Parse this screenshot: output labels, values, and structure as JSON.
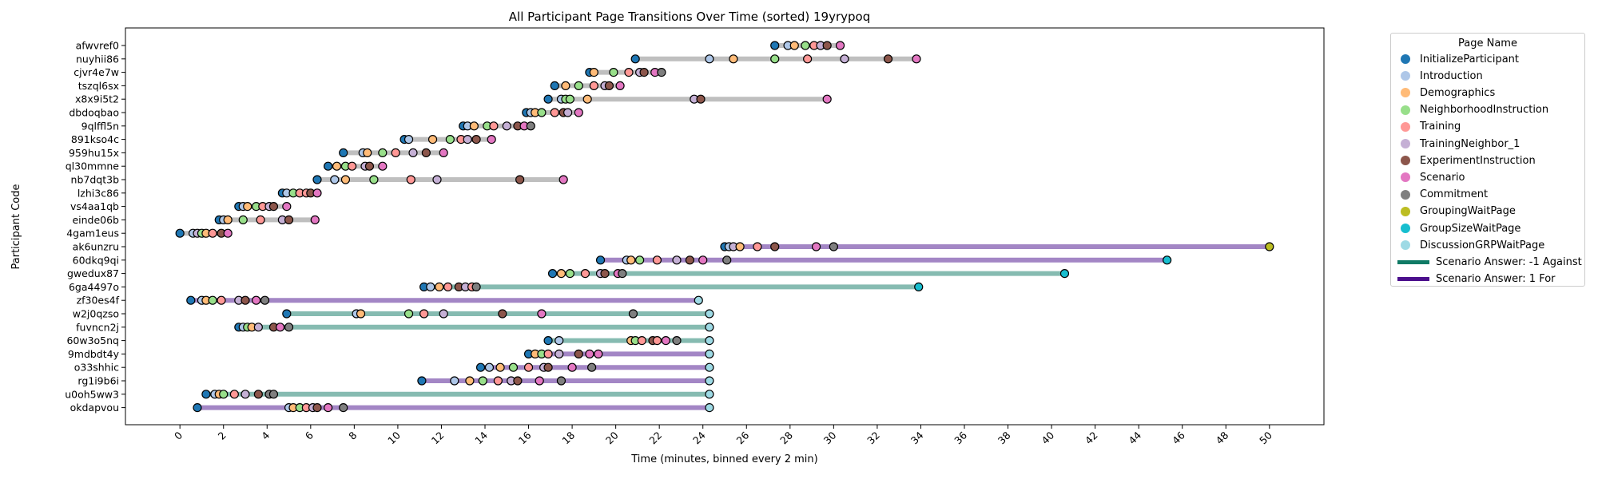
{
  "chart_data": {
    "type": "scatter",
    "title": "All Participant Page Transitions Over Time (sorted) 19yrypoq",
    "xlabel": "Time (minutes, binned every 2 min)",
    "ylabel": "Participant Code",
    "xlim": [
      -2.5,
      52.5
    ],
    "xticks": [
      0,
      2,
      4,
      6,
      8,
      10,
      12,
      14,
      16,
      18,
      20,
      22,
      24,
      26,
      28,
      30,
      32,
      34,
      36,
      38,
      40,
      42,
      44,
      46,
      48,
      50
    ],
    "grid": false,
    "legend_placement": "outside-top-right",
    "legend_title": "Page Name",
    "pages": [
      {
        "name": "InitializeParticipant",
        "color": "#1f77b4"
      },
      {
        "name": "Introduction",
        "color": "#aec7e8"
      },
      {
        "name": "Demographics",
        "color": "#ffbb78"
      },
      {
        "name": "NeighborhoodInstruction",
        "color": "#98df8a"
      },
      {
        "name": "Training",
        "color": "#ff9896"
      },
      {
        "name": "TrainingNeighbor_1",
        "color": "#c5b0d5"
      },
      {
        "name": "ExperimentInstruction",
        "color": "#8c564b"
      },
      {
        "name": "Scenario",
        "color": "#e377c2"
      },
      {
        "name": "Commitment",
        "color": "#7f7f7f"
      },
      {
        "name": "GroupingWaitPage",
        "color": "#bcbd22"
      },
      {
        "name": "GroupSizeWaitPage",
        "color": "#17becf"
      },
      {
        "name": "DiscussionGRPWaitPage",
        "color": "#9edae5"
      }
    ],
    "answers": [
      {
        "name": "Scenario Answer: -1 Against",
        "color": "#0f7a65"
      },
      {
        "name": "Scenario Answer: 1 For",
        "color": "#4b0f8c"
      }
    ],
    "participants": [
      {
        "code": "afwvref0",
        "answer": null,
        "events": [
          [
            27.3,
            0
          ],
          [
            27.9,
            1
          ],
          [
            28.2,
            2
          ],
          [
            28.7,
            3
          ],
          [
            29.1,
            4
          ],
          [
            29.4,
            5
          ],
          [
            29.7,
            6
          ],
          [
            30.3,
            7
          ]
        ]
      },
      {
        "code": "nuyhii86",
        "answer": null,
        "events": [
          [
            20.9,
            0
          ],
          [
            24.3,
            1
          ],
          [
            25.4,
            2
          ],
          [
            27.3,
            3
          ],
          [
            28.8,
            4
          ],
          [
            30.5,
            5
          ],
          [
            32.5,
            6
          ],
          [
            33.8,
            7
          ]
        ]
      },
      {
        "code": "cjvr4e7w",
        "answer": null,
        "events": [
          [
            18.8,
            0
          ],
          [
            19.0,
            2
          ],
          [
            19.9,
            3
          ],
          [
            20.6,
            4
          ],
          [
            21.1,
            5
          ],
          [
            21.3,
            6
          ],
          [
            21.8,
            7
          ],
          [
            22.1,
            8
          ]
        ]
      },
      {
        "code": "tszql6sx",
        "answer": null,
        "events": [
          [
            17.2,
            0
          ],
          [
            17.7,
            2
          ],
          [
            18.3,
            3
          ],
          [
            19.0,
            4
          ],
          [
            19.5,
            5
          ],
          [
            19.7,
            6
          ],
          [
            20.2,
            7
          ]
        ]
      },
      {
        "code": "x8x9i5t2",
        "answer": null,
        "events": [
          [
            16.9,
            0
          ],
          [
            17.5,
            1
          ],
          [
            17.7,
            3
          ],
          [
            17.9,
            3
          ],
          [
            18.7,
            2
          ],
          [
            23.6,
            5
          ],
          [
            23.9,
            6
          ],
          [
            29.7,
            7
          ]
        ]
      },
      {
        "code": "dbdoqbao",
        "answer": null,
        "events": [
          [
            15.9,
            0
          ],
          [
            16.1,
            1
          ],
          [
            16.3,
            2
          ],
          [
            16.6,
            3
          ],
          [
            17.2,
            4
          ],
          [
            17.6,
            6
          ],
          [
            17.8,
            5
          ],
          [
            18.3,
            7
          ]
        ]
      },
      {
        "code": "9qlffl5n",
        "answer": null,
        "events": [
          [
            13.0,
            0
          ],
          [
            13.2,
            1
          ],
          [
            13.5,
            2
          ],
          [
            14.1,
            3
          ],
          [
            14.4,
            4
          ],
          [
            15.0,
            5
          ],
          [
            15.5,
            6
          ],
          [
            15.8,
            7
          ],
          [
            16.1,
            8
          ]
        ]
      },
      {
        "code": "891kso4c",
        "answer": null,
        "events": [
          [
            10.3,
            0
          ],
          [
            10.5,
            1
          ],
          [
            11.6,
            2
          ],
          [
            12.4,
            3
          ],
          [
            12.9,
            4
          ],
          [
            13.2,
            5
          ],
          [
            13.6,
            6
          ],
          [
            14.3,
            7
          ]
        ]
      },
      {
        "code": "959hu15x",
        "answer": null,
        "events": [
          [
            7.5,
            0
          ],
          [
            8.4,
            1
          ],
          [
            8.6,
            2
          ],
          [
            9.3,
            3
          ],
          [
            9.9,
            4
          ],
          [
            10.7,
            5
          ],
          [
            11.3,
            6
          ],
          [
            12.1,
            7
          ]
        ]
      },
      {
        "code": "ql30mmne",
        "answer": null,
        "events": [
          [
            6.8,
            0
          ],
          [
            7.2,
            2
          ],
          [
            7.6,
            3
          ],
          [
            7.9,
            4
          ],
          [
            8.5,
            5
          ],
          [
            8.7,
            6
          ],
          [
            9.3,
            7
          ]
        ]
      },
      {
        "code": "nb7dqt3b",
        "answer": null,
        "events": [
          [
            6.3,
            0
          ],
          [
            7.1,
            1
          ],
          [
            7.6,
            2
          ],
          [
            8.9,
            3
          ],
          [
            10.6,
            4
          ],
          [
            11.8,
            5
          ],
          [
            15.6,
            6
          ],
          [
            17.6,
            7
          ]
        ]
      },
      {
        "code": "lzhi3c86",
        "answer": null,
        "events": [
          [
            4.7,
            0
          ],
          [
            4.9,
            1
          ],
          [
            5.2,
            3
          ],
          [
            5.5,
            4
          ],
          [
            5.8,
            4
          ],
          [
            6.0,
            6
          ],
          [
            6.3,
            7
          ]
        ]
      },
      {
        "code": "vs4aa1qb",
        "answer": null,
        "events": [
          [
            2.7,
            0
          ],
          [
            2.9,
            1
          ],
          [
            3.1,
            2
          ],
          [
            3.5,
            3
          ],
          [
            3.8,
            4
          ],
          [
            4.1,
            5
          ],
          [
            4.3,
            6
          ],
          [
            4.9,
            7
          ]
        ]
      },
      {
        "code": "einde06b",
        "answer": null,
        "events": [
          [
            1.8,
            0
          ],
          [
            2.0,
            1
          ],
          [
            2.2,
            2
          ],
          [
            2.9,
            3
          ],
          [
            3.7,
            4
          ],
          [
            4.7,
            5
          ],
          [
            5.0,
            6
          ],
          [
            6.2,
            7
          ]
        ]
      },
      {
        "code": "4gam1eus",
        "answer": null,
        "events": [
          [
            0.0,
            0
          ],
          [
            0.6,
            1
          ],
          [
            0.8,
            5
          ],
          [
            1.0,
            3
          ],
          [
            1.2,
            2
          ],
          [
            1.5,
            4
          ],
          [
            1.9,
            6
          ],
          [
            2.2,
            7
          ]
        ]
      },
      {
        "code": "ak6unzru",
        "answer": "For",
        "events": [
          [
            25.0,
            0
          ],
          [
            25.2,
            1
          ],
          [
            25.4,
            5
          ],
          [
            25.7,
            2
          ],
          [
            26.5,
            4
          ],
          [
            27.3,
            6
          ],
          [
            29.2,
            7
          ],
          [
            30.0,
            8
          ],
          [
            50.0,
            9
          ]
        ]
      },
      {
        "code": "60dkq9qi",
        "answer": "For",
        "events": [
          [
            19.3,
            0
          ],
          [
            20.5,
            1
          ],
          [
            20.7,
            2
          ],
          [
            21.1,
            3
          ],
          [
            21.9,
            4
          ],
          [
            22.8,
            5
          ],
          [
            23.4,
            6
          ],
          [
            24.0,
            7
          ],
          [
            25.1,
            8
          ],
          [
            45.3,
            10
          ]
        ]
      },
      {
        "code": "gwedux87",
        "answer": "Against",
        "events": [
          [
            17.1,
            0
          ],
          [
            17.5,
            2
          ],
          [
            17.9,
            3
          ],
          [
            18.6,
            4
          ],
          [
            19.3,
            5
          ],
          [
            19.5,
            6
          ],
          [
            20.1,
            7
          ],
          [
            20.3,
            8
          ],
          [
            40.6,
            10
          ]
        ]
      },
      {
        "code": "6ga4497o",
        "answer": "Against",
        "events": [
          [
            11.2,
            0
          ],
          [
            11.5,
            1
          ],
          [
            11.9,
            2
          ],
          [
            12.3,
            4
          ],
          [
            12.8,
            6
          ],
          [
            13.1,
            5
          ],
          [
            13.4,
            4
          ],
          [
            13.6,
            8
          ],
          [
            33.9,
            10
          ]
        ]
      },
      {
        "code": "zf30es4f",
        "answer": "For",
        "events": [
          [
            0.5,
            0
          ],
          [
            1.0,
            1
          ],
          [
            1.2,
            2
          ],
          [
            1.5,
            3
          ],
          [
            1.9,
            4
          ],
          [
            2.7,
            5
          ],
          [
            3.0,
            6
          ],
          [
            3.5,
            7
          ],
          [
            3.9,
            8
          ],
          [
            23.8,
            11
          ]
        ]
      },
      {
        "code": "w2j0qzso",
        "answer": "Against",
        "events": [
          [
            4.9,
            0
          ],
          [
            8.1,
            1
          ],
          [
            8.3,
            2
          ],
          [
            10.5,
            3
          ],
          [
            11.2,
            4
          ],
          [
            12.1,
            5
          ],
          [
            14.8,
            6
          ],
          [
            16.6,
            7
          ],
          [
            20.8,
            8
          ],
          [
            24.3,
            11
          ]
        ]
      },
      {
        "code": "fuvncn2j",
        "answer": "Against",
        "events": [
          [
            2.7,
            0
          ],
          [
            2.9,
            1
          ],
          [
            3.1,
            3
          ],
          [
            3.3,
            2
          ],
          [
            3.6,
            5
          ],
          [
            4.3,
            6
          ],
          [
            4.6,
            7
          ],
          [
            5.0,
            8
          ],
          [
            24.3,
            11
          ]
        ]
      },
      {
        "code": "60w3o5nq",
        "answer": "Against",
        "events": [
          [
            16.9,
            0
          ],
          [
            17.4,
            1
          ],
          [
            20.7,
            2
          ],
          [
            20.9,
            3
          ],
          [
            21.2,
            4
          ],
          [
            21.7,
            6
          ],
          [
            21.9,
            4
          ],
          [
            22.3,
            7
          ],
          [
            22.8,
            8
          ],
          [
            24.3,
            11
          ]
        ]
      },
      {
        "code": "9mdbdt4y",
        "answer": "For",
        "events": [
          [
            16.0,
            0
          ],
          [
            16.3,
            2
          ],
          [
            16.6,
            3
          ],
          [
            16.9,
            4
          ],
          [
            17.4,
            5
          ],
          [
            18.3,
            6
          ],
          [
            18.8,
            7
          ],
          [
            19.2,
            7
          ],
          [
            24.3,
            11
          ]
        ]
      },
      {
        "code": "o33shhic",
        "answer": "For",
        "events": [
          [
            13.8,
            0
          ],
          [
            14.2,
            1
          ],
          [
            14.7,
            2
          ],
          [
            15.3,
            3
          ],
          [
            16.0,
            4
          ],
          [
            16.7,
            5
          ],
          [
            16.9,
            6
          ],
          [
            18.0,
            7
          ],
          [
            18.9,
            8
          ],
          [
            24.3,
            11
          ]
        ]
      },
      {
        "code": "rg1i9b6i",
        "answer": "For",
        "events": [
          [
            11.1,
            0
          ],
          [
            12.6,
            1
          ],
          [
            13.3,
            2
          ],
          [
            13.9,
            3
          ],
          [
            14.6,
            4
          ],
          [
            15.2,
            5
          ],
          [
            15.5,
            6
          ],
          [
            16.5,
            7
          ],
          [
            17.5,
            8
          ],
          [
            24.3,
            11
          ]
        ]
      },
      {
        "code": "u0oh5ww3",
        "answer": "Against",
        "events": [
          [
            1.2,
            0
          ],
          [
            1.6,
            1
          ],
          [
            1.8,
            2
          ],
          [
            2.0,
            3
          ],
          [
            2.5,
            4
          ],
          [
            3.0,
            5
          ],
          [
            3.6,
            6
          ],
          [
            4.1,
            8
          ],
          [
            4.3,
            8
          ],
          [
            24.3,
            11
          ]
        ]
      },
      {
        "code": "okdapvou",
        "answer": "For",
        "events": [
          [
            0.8,
            0
          ],
          [
            5.0,
            1
          ],
          [
            5.2,
            2
          ],
          [
            5.5,
            3
          ],
          [
            5.8,
            4
          ],
          [
            6.1,
            5
          ],
          [
            6.3,
            6
          ],
          [
            6.8,
            7
          ],
          [
            7.5,
            8
          ],
          [
            24.3,
            11
          ]
        ]
      }
    ]
  }
}
